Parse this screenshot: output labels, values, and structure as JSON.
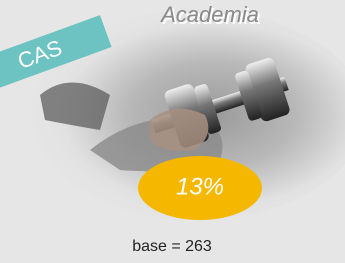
{
  "title": "Academia",
  "badge": "CAS",
  "value_label": "13%",
  "base": "base = 263"
}
